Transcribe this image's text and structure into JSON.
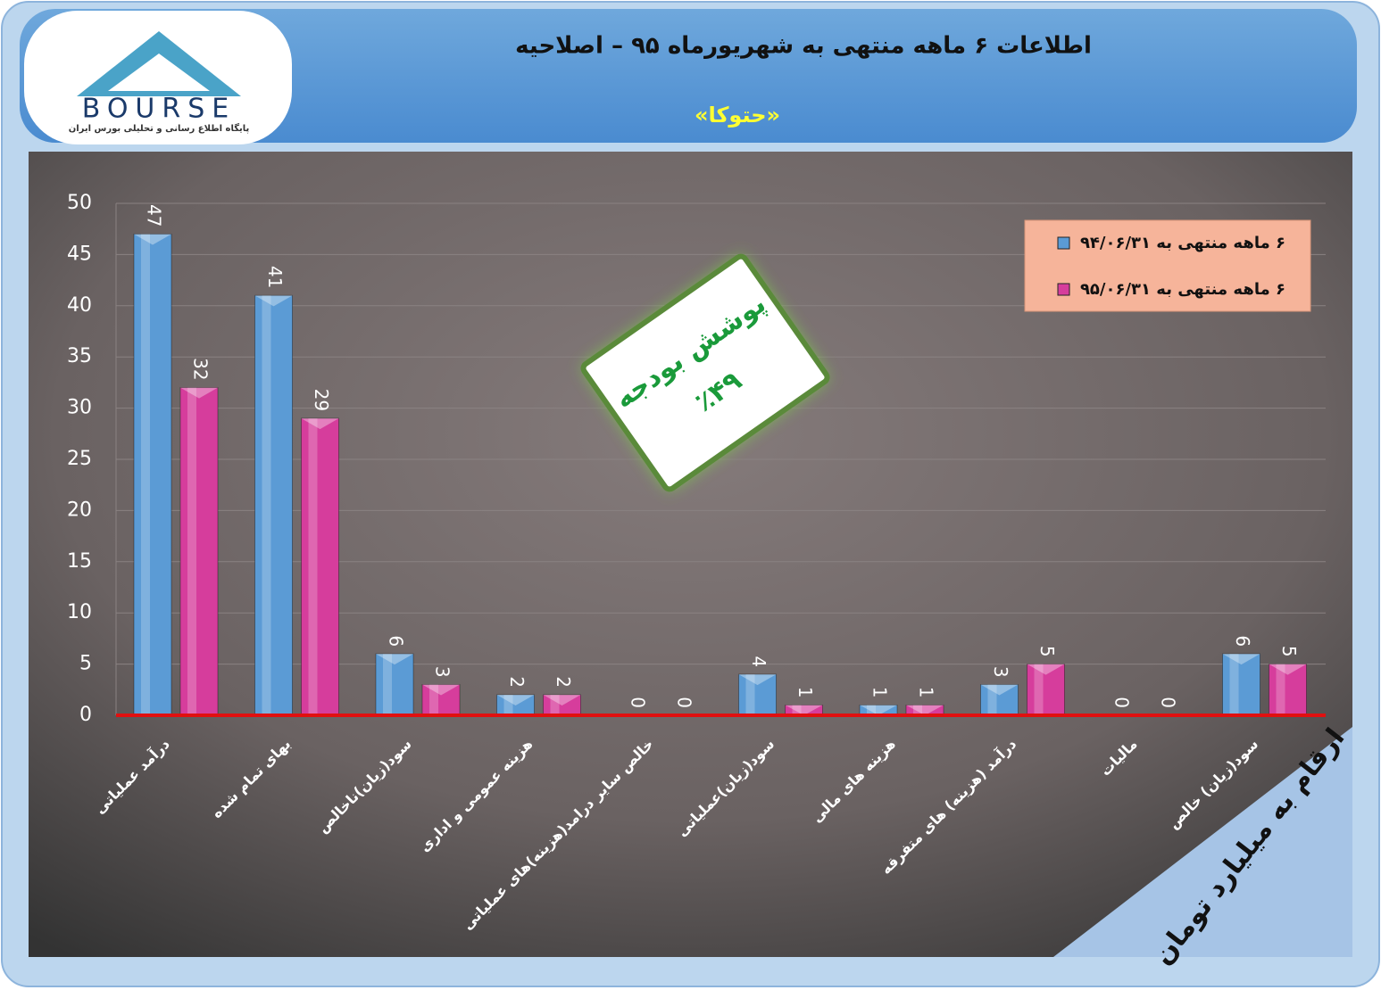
{
  "logo": {
    "text": "BOURSE",
    "caption": "پایگاه اطلاع رسانی و تحلیلی بورس ایران"
  },
  "chart_data": {
    "type": "bar",
    "title": "اطلاعات ۶  ماهه منتهی به شهریورماه ۹۵ – اصلاحیه",
    "subtitle": "«حتوکا»",
    "badge": [
      "پوشش بودجه",
      "٪۴۹"
    ],
    "unit_note": "ارقام به میلیارد تومان",
    "categories": [
      "درآمد عملیاتی",
      "بهای تمام شده",
      "سود(زیان)ناخالص",
      "هزینه عمومی و اداری",
      "خالص سایر درامد(هزینه)های عملیاتی",
      "سود(زیان)عملیاتی",
      "هزینه های مالی",
      "درآمد (هزینه) های متفرقه",
      "مالیات",
      "سود(زیان) خالص"
    ],
    "series": [
      {
        "name": "۶ ماهه منتهی به ۹۴/۰۶/۳۱",
        "color": "#5b9bd5",
        "values": [
          47,
          41,
          6,
          2,
          0,
          4,
          1,
          3,
          0,
          6
        ]
      },
      {
        "name": "۶ ماهه منتهی به ۹۵/۰۶/۳۱",
        "color": "#d63d9c",
        "values": [
          32,
          29,
          3,
          2,
          0,
          1,
          1,
          5,
          0,
          5
        ]
      }
    ],
    "ylim": [
      0,
      50
    ],
    "yticks": [
      0,
      5,
      10,
      15,
      20,
      25,
      30,
      35,
      40,
      45,
      50
    ],
    "grid": true,
    "legend": "top-right"
  }
}
